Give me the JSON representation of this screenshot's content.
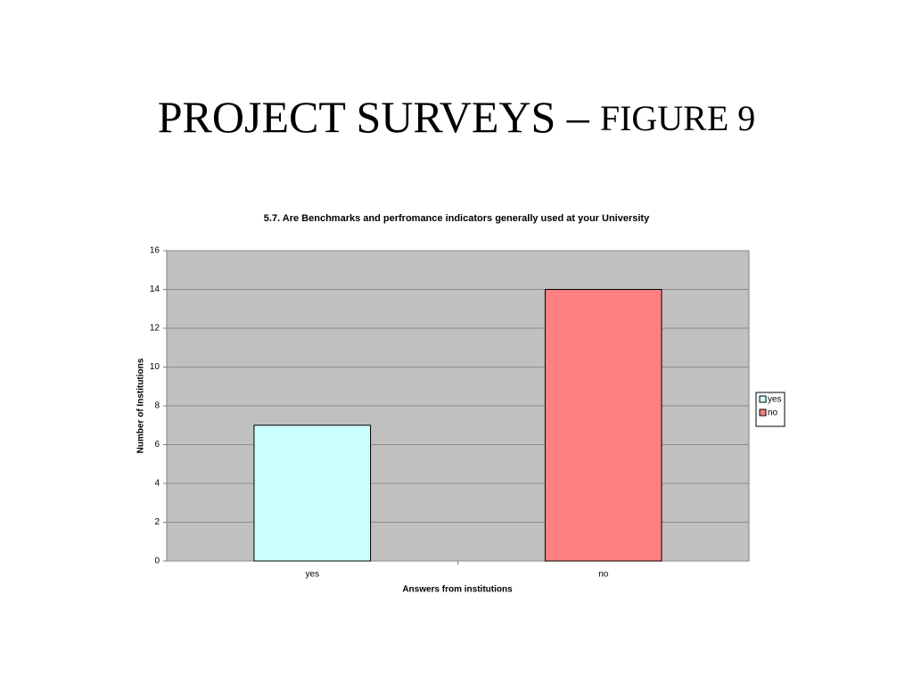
{
  "slide": {
    "title_main": "PROJECT SURVEYS –",
    "title_sub": "FIGURE 9"
  },
  "chart_data": {
    "type": "bar",
    "title": "5.7. Are Benchmarks and perfromance indicators generally used at your University",
    "x_label": "Answers from institutions",
    "y_label": "Number of Institutions",
    "categories": [
      "yes",
      "no"
    ],
    "values": [
      7,
      14
    ],
    "colors": [
      "#ccffff",
      "#ff8080"
    ],
    "ylim": [
      0,
      16
    ],
    "yticks": [
      0,
      2,
      4,
      6,
      8,
      10,
      12,
      14,
      16
    ],
    "grid": true,
    "legend": "right"
  }
}
